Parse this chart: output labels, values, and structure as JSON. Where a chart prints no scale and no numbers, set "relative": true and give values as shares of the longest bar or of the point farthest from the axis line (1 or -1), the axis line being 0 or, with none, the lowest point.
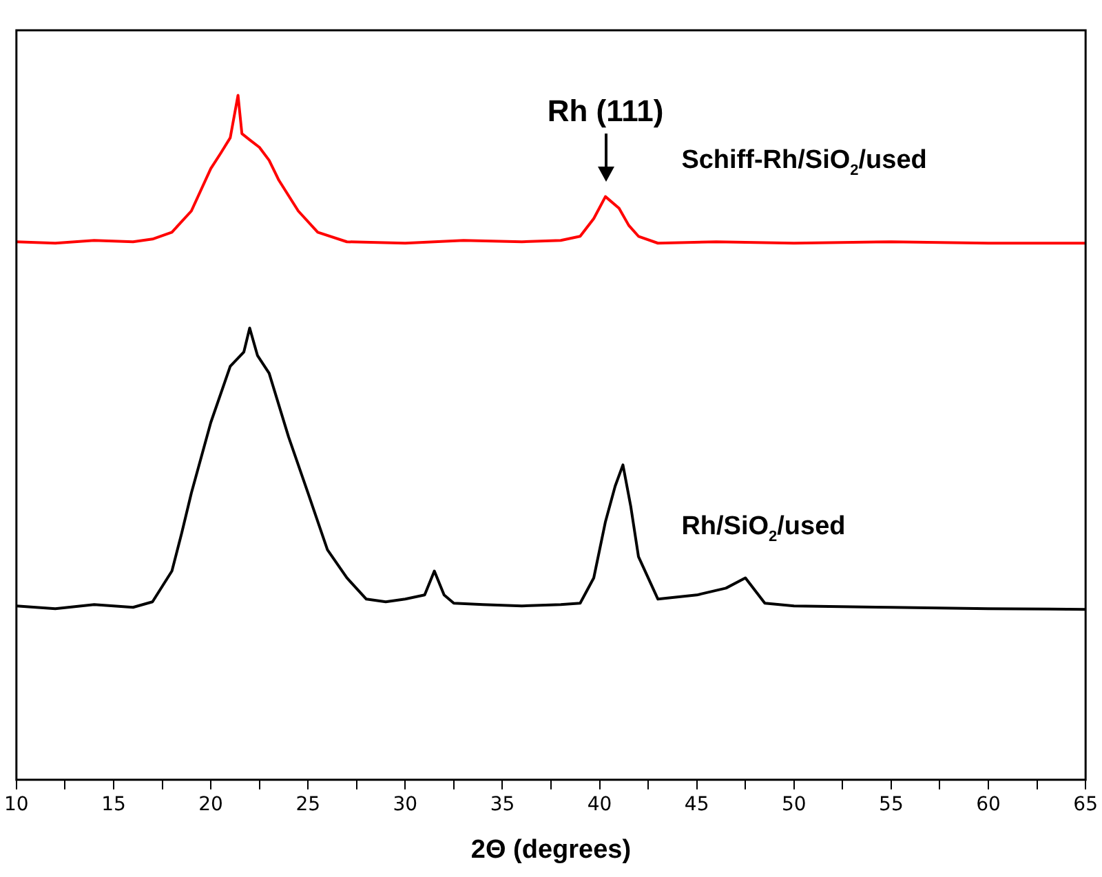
{
  "chart_data": {
    "type": "line",
    "relative": true,
    "xlabel": "2Θ (degrees)",
    "xlim": [
      10,
      65
    ],
    "xticks": [
      10,
      {
        "value": 12.5,
        "label": null
      },
      15,
      {
        "value": 17.5,
        "label": null
      },
      20,
      {
        "value": 22.5,
        "label": null
      },
      25,
      {
        "value": 27.5,
        "label": null
      },
      30,
      {
        "value": 32.5,
        "label": null
      },
      35,
      {
        "value": 37.5,
        "label": null
      },
      40,
      {
        "value": 42.5,
        "label": null
      },
      45,
      {
        "value": 47.5,
        "label": null
      },
      50,
      {
        "value": 52.5,
        "label": null
      },
      55,
      {
        "value": 57.5,
        "label": null
      },
      60,
      {
        "value": 62.5,
        "label": null
      },
      65
    ],
    "grid": false,
    "legend": false,
    "marker": "none",
    "line_style": "solid",
    "annotations": [
      {
        "text": "Rh (111)",
        "x": 40.3,
        "y": 0.86
      }
    ],
    "series": [
      {
        "name": "Schiff-Rh/SiO$_{2}$/used",
        "color": "#ff0000",
        "x": [
          10,
          12,
          14,
          16,
          17,
          18,
          19,
          20,
          20.5,
          21,
          21.4,
          21.6,
          22,
          22.5,
          23,
          23.5,
          24.5,
          25.5,
          27,
          30,
          33,
          36,
          38,
          39,
          39.7,
          40.3,
          41,
          41.5,
          42,
          43,
          46,
          50,
          55,
          60,
          65
        ],
        "values": [
          0.786,
          0.784,
          0.788,
          0.786,
          0.79,
          0.8,
          0.831,
          0.893,
          0.915,
          0.938,
          1,
          0.944,
          0.935,
          0.924,
          0.905,
          0.876,
          0.831,
          0.8,
          0.786,
          0.784,
          0.788,
          0.786,
          0.788,
          0.794,
          0.82,
          0.852,
          0.835,
          0.81,
          0.794,
          0.784,
          0.786,
          0.784,
          0.786,
          0.784,
          0.784
        ]
      },
      {
        "name": "Rh/SiO$_{2}$/used",
        "color": "#000000",
        "x": [
          10,
          12,
          14,
          16,
          17,
          18,
          18.5,
          19,
          20,
          21,
          21.7,
          22,
          22.4,
          23,
          24,
          25,
          26,
          27,
          28,
          29,
          30,
          31,
          31.5,
          32,
          32.5,
          34,
          36,
          38,
          39,
          39.7,
          40.3,
          40.8,
          41.2,
          41.6,
          42,
          43,
          45,
          46.5,
          47.5,
          48.5,
          50,
          55,
          60,
          65
        ],
        "values": [
          0.254,
          0.25,
          0.256,
          0.252,
          0.26,
          0.305,
          0.36,
          0.419,
          0.522,
          0.604,
          0.625,
          0.66,
          0.62,
          0.594,
          0.501,
          0.419,
          0.336,
          0.295,
          0.264,
          0.26,
          0.264,
          0.27,
          0.305,
          0.27,
          0.258,
          0.256,
          0.254,
          0.256,
          0.258,
          0.295,
          0.377,
          0.429,
          0.46,
          0.4,
          0.326,
          0.264,
          0.27,
          0.28,
          0.295,
          0.258,
          0.254,
          0.252,
          0.25,
          0.249
        ]
      }
    ]
  }
}
